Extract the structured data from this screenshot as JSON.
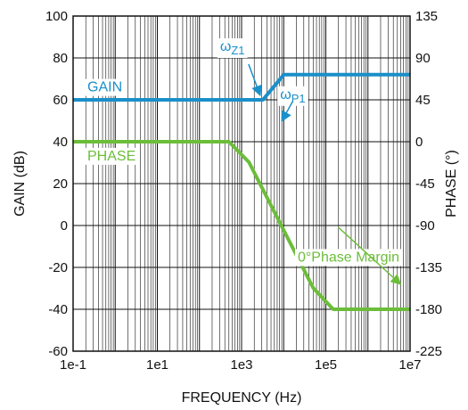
{
  "chart_data": {
    "type": "line",
    "xlabel": "FREQUENCY (Hz)",
    "ylabel_left": "GAIN (dB)",
    "ylabel_right": "PHASE (°)",
    "x_scale": "log",
    "xlim": [
      0.1,
      10000000
    ],
    "x_ticks": [
      {
        "value": 0.1,
        "label": "1e-1"
      },
      {
        "value": 10,
        "label": "1e1"
      },
      {
        "value": 1000,
        "label": "1e3"
      },
      {
        "value": 100000,
        "label": "1e5"
      },
      {
        "value": 10000000,
        "label": "1e7"
      }
    ],
    "ylim_left": [
      -60,
      100
    ],
    "y_ticks_left": [
      "100",
      "80",
      "60",
      "40",
      "20",
      "0",
      "-20",
      "-40",
      "-60"
    ],
    "ylim_right": [
      -225,
      135
    ],
    "y_ticks_right": [
      "135",
      "90",
      "45",
      "0",
      "-45",
      "-90",
      "-135",
      "-180",
      "-225"
    ],
    "grid": true,
    "series": [
      {
        "name": "GAIN",
        "axis": "left",
        "color": "#1a8fc9",
        "points": [
          [
            0.1,
            60
          ],
          [
            3200,
            60
          ],
          [
            10000,
            72
          ],
          [
            10000000,
            72
          ]
        ]
      },
      {
        "name": "PHASE",
        "axis": "right",
        "color": "#6cbd3a",
        "points": [
          [
            0.1,
            0
          ],
          [
            500,
            0
          ],
          [
            1500,
            -22
          ],
          [
            50000,
            -157
          ],
          [
            150000,
            -180
          ],
          [
            10000000,
            -180
          ]
        ]
      }
    ],
    "annotations": [
      {
        "text": "ω",
        "sub": "Z1",
        "x": 3200,
        "y": 60,
        "color": "#1a8fc9"
      },
      {
        "text": "ω",
        "sub": "P1",
        "x": 10000,
        "y": 72,
        "color": "#1a8fc9"
      },
      {
        "text": "0°Phase Margin",
        "x": 6000000,
        "y": -180,
        "color": "#6cbd3a"
      }
    ]
  }
}
